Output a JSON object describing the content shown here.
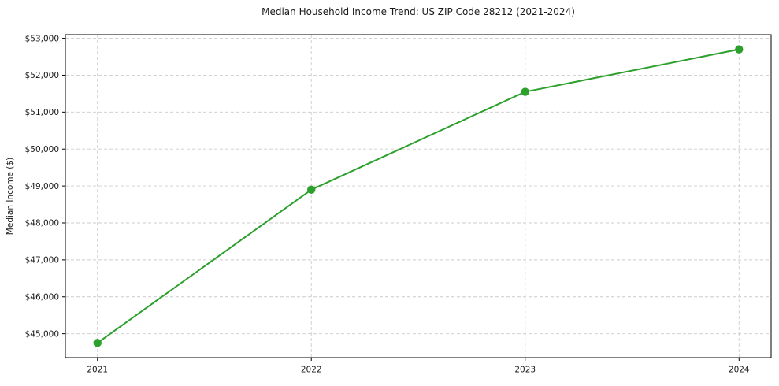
{
  "chart_data": {
    "type": "line",
    "title": "Median Household Income Trend: US ZIP Code 28212 (2021-2024)",
    "xlabel": "",
    "ylabel": "Median Income ($)",
    "x": [
      2021,
      2022,
      2023,
      2024
    ],
    "x_tick_labels": [
      "2021",
      "2022",
      "2023",
      "2024"
    ],
    "series": [
      {
        "name": "Median Household Income",
        "values": [
          44750,
          48900,
          51550,
          52700
        ]
      }
    ],
    "y_ticks": [
      45000,
      46000,
      47000,
      48000,
      49000,
      50000,
      51000,
      52000,
      53000
    ],
    "y_tick_labels": [
      "$45,000",
      "$46,000",
      "$47,000",
      "$48,000",
      "$49,000",
      "$50,000",
      "$51,000",
      "$52,000",
      "$53,000"
    ],
    "xlim": [
      2020.85,
      2024.15
    ],
    "ylim": [
      44352.5,
      53097.5
    ],
    "grid": true,
    "grid_style": "dashed",
    "legend": false,
    "line_color": "#2ca02c",
    "marker": "circle",
    "marker_color": "#2ca02c",
    "grid_color": "#cccccc",
    "text_color": "#1a1a1a",
    "background_color": "#ffffff"
  }
}
